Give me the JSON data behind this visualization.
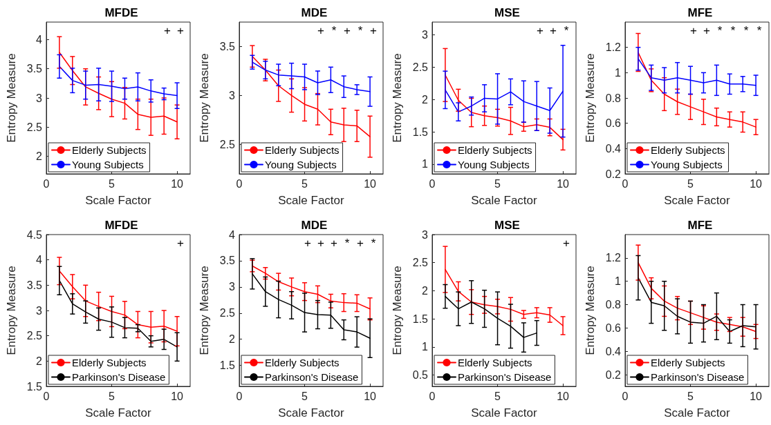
{
  "chart_data": [
    {
      "type": "line",
      "title": "MFDE",
      "xlabel": "Scale Factor",
      "ylabel": "Entropy Measure",
      "xlim": [
        0,
        11
      ],
      "xticks": [
        0,
        5,
        10
      ],
      "ylim": [
        1.7,
        4.3
      ],
      "yticks": [
        2,
        2.5,
        3,
        3.5,
        4
      ],
      "legend": "bottom left",
      "x": [
        1,
        2,
        3,
        4,
        5,
        6,
        7,
        8,
        9,
        10
      ],
      "series": [
        {
          "name": "Elderly Subjects",
          "color": "#ff0000",
          "values": [
            3.78,
            3.47,
            3.19,
            3.08,
            2.98,
            2.91,
            2.72,
            2.67,
            2.69,
            2.59
          ],
          "errors": [
            0.27,
            0.24,
            0.31,
            0.28,
            0.3,
            0.27,
            0.26,
            0.31,
            0.31,
            0.29
          ]
        },
        {
          "name": "Young Subjects",
          "color": "#0000ff",
          "values": [
            3.54,
            3.3,
            3.22,
            3.23,
            3.2,
            3.16,
            3.19,
            3.12,
            3.07,
            3.04
          ],
          "errors": [
            0.2,
            0.21,
            0.24,
            0.28,
            0.26,
            0.18,
            0.24,
            0.19,
            0.1,
            0.22
          ]
        }
      ],
      "annotations": [
        "+",
        "+"
      ]
    },
    {
      "type": "line",
      "title": "MDE",
      "xlabel": "Scale Factor",
      "ylabel": "Entropy Measure",
      "xlim": [
        0,
        11
      ],
      "xticks": [
        0,
        5,
        10
      ],
      "ylim": [
        2.2,
        3.75
      ],
      "yticks": [
        2.5,
        3,
        3.5
      ],
      "legend": "bottom left",
      "x": [
        1,
        2,
        3,
        4,
        5,
        6,
        7,
        8,
        9,
        10
      ],
      "series": [
        {
          "name": "Elderly Subjects",
          "color": "#ff0000",
          "values": [
            3.4,
            3.26,
            3.1,
            3.0,
            2.91,
            2.86,
            2.73,
            2.7,
            2.69,
            2.58
          ],
          "errors": [
            0.11,
            0.11,
            0.16,
            0.17,
            0.17,
            0.16,
            0.13,
            0.17,
            0.16,
            0.21
          ]
        },
        {
          "name": "Young Subjects",
          "color": "#0000ff",
          "values": [
            3.34,
            3.26,
            3.21,
            3.2,
            3.19,
            3.13,
            3.16,
            3.09,
            3.06,
            3.04
          ],
          "errors": [
            0.07,
            0.09,
            0.11,
            0.13,
            0.13,
            0.12,
            0.13,
            0.11,
            0.05,
            0.15
          ]
        }
      ],
      "annotations": [
        "+",
        "*",
        "+",
        "*",
        "+"
      ]
    },
    {
      "type": "line",
      "title": "MSE",
      "xlabel": "Scale Factor",
      "ylabel": "Entropy Measure",
      "xlim": [
        0,
        11
      ],
      "xticks": [
        0,
        5,
        10
      ],
      "ylim": [
        0.85,
        3.2
      ],
      "yticks": [
        1,
        1.5,
        2,
        2.5,
        3
      ],
      "legend": "bottom left",
      "x": [
        1,
        2,
        3,
        4,
        5,
        6,
        7,
        8,
        9,
        10
      ],
      "series": [
        {
          "name": "Elderly Subjects",
          "color": "#ff0000",
          "values": [
            2.38,
            1.99,
            1.8,
            1.75,
            1.72,
            1.67,
            1.58,
            1.61,
            1.57,
            1.38
          ],
          "errors": [
            0.41,
            0.17,
            0.22,
            0.15,
            0.13,
            0.21,
            0.07,
            0.09,
            0.13,
            0.16
          ]
        },
        {
          "name": "Young Subjects",
          "color": "#0000ff",
          "values": [
            2.15,
            1.81,
            1.9,
            2.02,
            2.01,
            2.12,
            1.97,
            1.9,
            1.83,
            2.13
          ],
          "errors": [
            0.29,
            0.14,
            0.14,
            0.21,
            0.39,
            0.2,
            0.32,
            0.38,
            0.35,
            0.71
          ]
        }
      ],
      "annotations": [
        "+",
        "+",
        "*"
      ]
    },
    {
      "type": "line",
      "title": "MFE",
      "xlabel": "Scale Factor",
      "ylabel": "Entropy Measure",
      "xlim": [
        0,
        11
      ],
      "xticks": [
        0,
        5,
        10
      ],
      "ylim": [
        0.2,
        1.4
      ],
      "yticks": [
        0.2,
        0.4,
        0.6,
        0.8,
        1,
        1.2
      ],
      "legend": "bottom left",
      "x": [
        1,
        2,
        3,
        4,
        5,
        6,
        7,
        8,
        9,
        10
      ],
      "series": [
        {
          "name": "Elderly Subjects",
          "color": "#ff0000",
          "values": [
            1.16,
            0.94,
            0.83,
            0.77,
            0.73,
            0.69,
            0.65,
            0.63,
            0.61,
            0.57
          ],
          "errors": [
            0.15,
            0.09,
            0.13,
            0.1,
            0.1,
            0.1,
            0.07,
            0.06,
            0.08,
            0.06
          ]
        },
        {
          "name": "Young Subjects",
          "color": "#0000ff",
          "values": [
            1.11,
            0.96,
            0.94,
            0.96,
            0.94,
            0.92,
            0.94,
            0.91,
            0.91,
            0.9
          ],
          "errors": [
            0.09,
            0.1,
            0.1,
            0.12,
            0.11,
            0.08,
            0.12,
            0.08,
            0.06,
            0.08
          ]
        }
      ],
      "annotations": [
        "+",
        "+",
        "*",
        "*",
        "*",
        "*"
      ]
    },
    {
      "type": "line",
      "title": "MFDE",
      "xlabel": "Scale Factor",
      "ylabel": "Entropy Measure",
      "xlim": [
        0,
        11
      ],
      "xticks": [
        0,
        5,
        10
      ],
      "ylim": [
        1.5,
        4.5
      ],
      "yticks": [
        1.5,
        2,
        2.5,
        3,
        3.5,
        4,
        4.5
      ],
      "legend": "bottom left",
      "x": [
        1,
        2,
        3,
        4,
        5,
        6,
        7,
        8,
        9,
        10
      ],
      "series": [
        {
          "name": "Elderly Subjects",
          "color": "#ff0000",
          "values": [
            3.78,
            3.47,
            3.19,
            3.08,
            2.98,
            2.91,
            2.72,
            2.67,
            2.69,
            2.59
          ],
          "errors": [
            0.27,
            0.24,
            0.31,
            0.28,
            0.3,
            0.27,
            0.26,
            0.31,
            0.31,
            0.29
          ]
        },
        {
          "name": "Parkinson's Disease",
          "color": "#000000",
          "values": [
            3.59,
            3.13,
            2.97,
            2.83,
            2.77,
            2.66,
            2.65,
            2.39,
            2.43,
            2.28
          ],
          "errors": [
            0.28,
            0.2,
            0.22,
            0.22,
            0.3,
            0.2,
            0.07,
            0.11,
            0.2,
            0.28
          ]
        }
      ],
      "annotations": [
        "+"
      ]
    },
    {
      "type": "line",
      "title": "MDE",
      "xlabel": "Scale Factor",
      "ylabel": "Entropy Measure",
      "xlim": [
        0,
        11
      ],
      "xticks": [
        0,
        5,
        10
      ],
      "ylim": [
        1.1,
        4
      ],
      "yticks": [
        1.5,
        2,
        2.5,
        3,
        3.5,
        4
      ],
      "legend": "bottom left",
      "x": [
        1,
        2,
        3,
        4,
        5,
        6,
        7,
        8,
        9,
        10
      ],
      "series": [
        {
          "name": "Elderly Subjects",
          "color": "#ff0000",
          "values": [
            3.4,
            3.26,
            3.1,
            3.0,
            2.91,
            2.86,
            2.73,
            2.7,
            2.69,
            2.58
          ],
          "errors": [
            0.11,
            0.11,
            0.16,
            0.17,
            0.17,
            0.16,
            0.13,
            0.17,
            0.16,
            0.21
          ]
        },
        {
          "name": "Parkinson's Disease",
          "color": "#000000",
          "values": [
            3.25,
            2.91,
            2.76,
            2.65,
            2.51,
            2.47,
            2.46,
            2.18,
            2.14,
            2.02
          ],
          "errors": [
            0.29,
            0.28,
            0.35,
            0.26,
            0.37,
            0.27,
            0.25,
            0.19,
            0.29,
            0.37
          ]
        }
      ],
      "annotations": [
        "+",
        "+",
        "+",
        "*",
        "+",
        "*"
      ]
    },
    {
      "type": "line",
      "title": "MSE",
      "xlabel": "Scale Factor",
      "ylabel": "Entropy Measure",
      "xlim": [
        0,
        11
      ],
      "xticks": [
        0,
        5,
        10
      ],
      "ylim": [
        0.3,
        3
      ],
      "yticks": [
        0.5,
        1,
        1.5,
        2,
        2.5,
        3
      ],
      "legend": "bottom left",
      "x": [
        1,
        2,
        3,
        4,
        5,
        6,
        7,
        8,
        9,
        10
      ],
      "series": [
        {
          "name": "Elderly Subjects",
          "color": "#ff0000",
          "values": [
            2.38,
            1.99,
            1.8,
            1.75,
            1.72,
            1.67,
            1.58,
            1.61,
            1.57,
            1.38
          ],
          "errors": [
            0.41,
            0.17,
            0.22,
            0.15,
            0.13,
            0.21,
            0.07,
            0.09,
            0.13,
            0.16
          ]
        },
        {
          "name": "Parkinson's Disease",
          "color": "#000000",
          "values": [
            1.9,
            1.68,
            1.8,
            1.68,
            1.51,
            1.37,
            1.17,
            1.25,
            null,
            null
          ],
          "errors": [
            0.21,
            0.3,
            0.38,
            0.33,
            0.47,
            0.39,
            0.26,
            0.22,
            null,
            null
          ]
        }
      ],
      "annotations": [
        "+"
      ]
    },
    {
      "type": "line",
      "title": "MFE",
      "xlabel": "Scale Factor",
      "ylabel": "Entropy Measure",
      "xlim": [
        0,
        11
      ],
      "xticks": [
        0,
        5,
        10
      ],
      "ylim": [
        0.1,
        1.4
      ],
      "yticks": [
        0.2,
        0.4,
        0.6,
        0.8,
        1,
        1.2
      ],
      "legend": "bottom left",
      "x": [
        1,
        2,
        3,
        4,
        5,
        6,
        7,
        8,
        9,
        10
      ],
      "series": [
        {
          "name": "Elderly Subjects",
          "color": "#ff0000",
          "values": [
            1.16,
            0.94,
            0.83,
            0.77,
            0.73,
            0.69,
            0.65,
            0.63,
            0.61,
            0.57
          ],
          "errors": [
            0.15,
            0.09,
            0.13,
            0.1,
            0.1,
            0.1,
            0.07,
            0.06,
            0.08,
            0.06
          ]
        },
        {
          "name": "Parkinson's Disease",
          "color": "#000000",
          "values": [
            1.03,
            0.82,
            0.79,
            0.7,
            0.65,
            0.64,
            0.7,
            0.57,
            0.62,
            0.61
          ],
          "errors": [
            0.19,
            0.18,
            0.21,
            0.15,
            0.18,
            0.16,
            0.2,
            0.1,
            0.18,
            0.19
          ]
        }
      ]
    }
  ]
}
